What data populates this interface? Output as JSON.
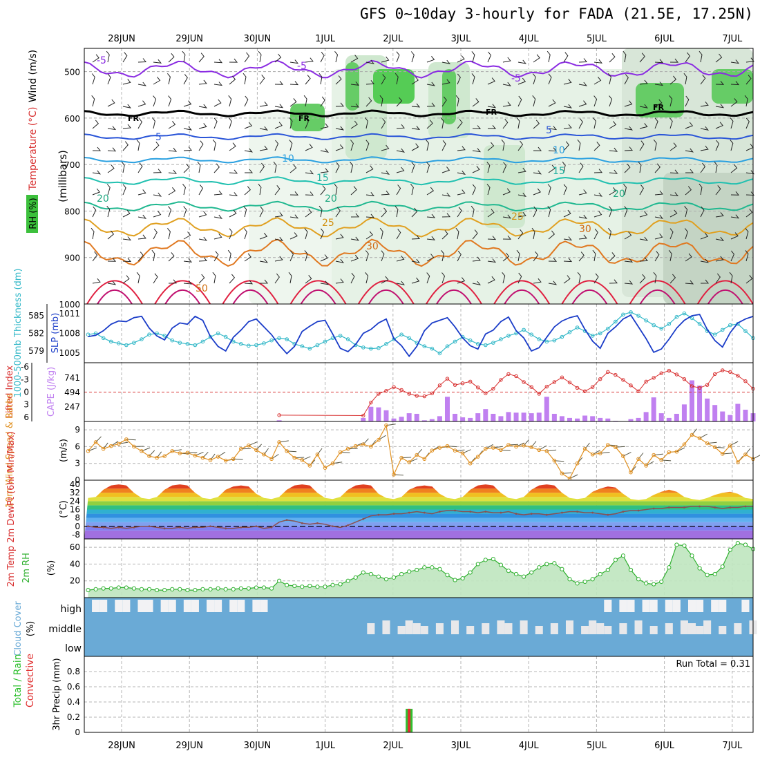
{
  "title": "GFS 0~10day 3-hourly for FADA (21.5E, 17.25N)",
  "colors": {
    "rh_green": "#3cc03c",
    "temp_purple": "#8a2be2",
    "freezing": "#000000",
    "slp": "#1a3cc8",
    "thickness": "#33b8c8",
    "lifted_index": "#d83030",
    "cape": "#c080f0",
    "wind10": "#e09020",
    "dewpt": "#8a5050",
    "rh2m": "#30b030",
    "cloud": "#6aaad6",
    "precip_total": "#30c030",
    "precip_conv": "#e03030"
  },
  "x_labels": [
    "28JUN",
    "29JUN",
    "30JUN",
    "1JUL",
    "2JUL",
    "3JUL",
    "4JUL",
    "5JUL",
    "6JUL",
    "7JUL"
  ],
  "panels": {
    "upper_air": {
      "ylabel_rh": "RH (%)",
      "ylabel_temp": "Temperature (°C)",
      "ylabel_wind": "Wind (m/s)",
      "ylabel_units": "(millibars)",
      "ylim": [
        1000,
        450
      ],
      "yticks": [
        "500",
        "600",
        "700",
        "800",
        "900",
        "1000"
      ],
      "contour_labels": [
        "-5",
        "-5",
        "-5",
        "FR",
        "FR",
        "FR",
        "FR",
        "5",
        "5",
        "10",
        "10",
        "15",
        "15",
        "20",
        "20",
        "20",
        "25",
        "25",
        "30",
        "30",
        "50"
      ]
    },
    "slp_thickness": {
      "ylabel_thk": "1000-500mb Thickness (dm)",
      "ylabel_slp": "SLP (mb)",
      "thk_ticks": [
        "585",
        "582",
        "579"
      ],
      "slp_ticks": [
        "1011",
        "1008",
        "1005"
      ]
    },
    "li_cape": {
      "ylabel_li": "Lifted Index",
      "ylabel_cape": "CAPE (J/kg)",
      "li_ticks": [
        "-6",
        "-3",
        "0",
        "3",
        "6"
      ],
      "cape_ticks": [
        "741",
        "494",
        "247"
      ]
    },
    "wind10": {
      "ylabel": "10m Wind Speed & Barbs",
      "yunits": "(m/s)",
      "yticks": [
        "9",
        "6",
        "3",
        "0"
      ]
    },
    "temp2m": {
      "ylabel": "2m Temp 2m DewPt (6hr Min/Max)",
      "yunits": "(°C)",
      "yticks": [
        "40",
        "32",
        "24",
        "16",
        "8",
        "0",
        "-8"
      ]
    },
    "rh2m": {
      "ylabel": "2m RH",
      "yunits": "(%)",
      "yticks": [
        "60",
        "40",
        "20"
      ]
    },
    "cloud": {
      "ylabel": "Cloud Cover",
      "yunits": "(%)",
      "levels": [
        "high",
        "middle",
        "low"
      ]
    },
    "precip": {
      "ylabel": "3hr Precip (mm)",
      "legend_total": "Total / Rain",
      "legend_conv": "Convective",
      "yticks": [
        "0.8",
        "0.6",
        "0.4",
        "0.2",
        "0"
      ],
      "run_total": "Run Total = 0.31"
    }
  },
  "chart_data": {
    "type": "line",
    "x_start": "27JUN 12Z",
    "x_step_hours": 3,
    "series": [
      {
        "name": "SLP (mb)",
        "unit": "mb",
        "values": [
          1007.5,
          1007.7,
          1008.4,
          1009.4,
          1009.9,
          1009.8,
          1010.4,
          1010.6,
          1008.8,
          1007.6,
          1007.0,
          1008.8,
          1009.6,
          1009.4,
          1010.6,
          1010.0,
          1007.5,
          1006.0,
          1005.3,
          1007.4,
          1008.5,
          1009.8,
          1010.2,
          1009.0,
          1007.8,
          1006.2,
          1004.9,
          1006.0,
          1008.3,
          1009.1,
          1009.8,
          1010.0,
          1007.9,
          1005.7,
          1005.2,
          1006.3,
          1008.0,
          1008.6,
          1009.6,
          1010.2,
          1007.2,
          1006.1,
          1004.5,
          1006.0,
          1008.4,
          1009.6,
          1010.0,
          1010.4,
          1009.0,
          1007.3,
          1006.1,
          1005.6,
          1007.9,
          1008.5,
          1009.8,
          1010.5,
          1008.4,
          1007.3,
          1005.3,
          1005.8,
          1007.4,
          1009.0,
          1009.9,
          1010.4,
          1010.7,
          1008.6,
          1006.8,
          1005.7,
          1008.0,
          1009.0,
          1010.2,
          1010.8,
          1009.0,
          1007.2,
          1005.1,
          1005.6,
          1007.1,
          1008.8,
          1010.0,
          1010.7,
          1010.9,
          1008.6,
          1006.9,
          1005.9,
          1008.1,
          1009.6,
          1010.2,
          1010.6
        ]
      },
      {
        "name": "1000-500mb Thickness (dm)",
        "unit": "dm",
        "values": [
          581.8,
          582.0,
          581.2,
          580.6,
          580.3,
          580.0,
          580.4,
          581.0,
          581.8,
          582.0,
          581.6,
          580.8,
          580.4,
          580.2,
          580.0,
          580.6,
          581.4,
          582.0,
          581.4,
          580.6,
          580.2,
          579.9,
          580.0,
          580.3,
          580.8,
          581.2,
          581.0,
          580.2,
          579.8,
          579.4,
          580.0,
          580.6,
          581.2,
          581.6,
          581.0,
          580.0,
          579.6,
          579.4,
          579.5,
          580.2,
          581.0,
          581.8,
          581.2,
          580.4,
          579.8,
          579.4,
          578.6,
          579.8,
          580.6,
          581.4,
          580.8,
          580.2,
          580.0,
          580.4,
          581.0,
          581.6,
          582.0,
          582.6,
          581.8,
          581.0,
          580.6,
          580.8,
          581.4,
          582.2,
          583.0,
          582.4,
          581.6,
          582.0,
          582.8,
          584.0,
          585.2,
          585.6,
          585.0,
          584.2,
          583.4,
          582.8,
          583.6,
          584.8,
          585.4,
          584.6,
          583.6,
          582.4,
          581.8,
          582.6,
          583.4,
          583.6,
          582.4,
          581.2
        ]
      },
      {
        "name": "Lifted Index",
        "unit": "",
        "values": [
          null,
          null,
          null,
          null,
          null,
          null,
          null,
          null,
          null,
          null,
          null,
          null,
          null,
          null,
          null,
          null,
          null,
          null,
          null,
          null,
          null,
          null,
          null,
          null,
          null,
          5.5,
          null,
          null,
          null,
          null,
          null,
          null,
          null,
          null,
          null,
          null,
          5.6,
          2.5,
          0.4,
          -0.3,
          -1.2,
          -0.5,
          0.4,
          0.9,
          1.0,
          0.3,
          -1.6,
          -3.2,
          -1.7,
          -2.1,
          -2.5,
          -1.1,
          0.3,
          -0.8,
          -2.9,
          -4.3,
          -3.8,
          -2.4,
          -1.2,
          0.4,
          -1.3,
          -2.4,
          -3.5,
          -2.3,
          -1.0,
          -0.2,
          -1.2,
          -3.1,
          -4.8,
          -4.1,
          -2.9,
          -1.6,
          -0.2,
          -2.5,
          -3.4,
          -4.5,
          -5.1,
          -4.2,
          -3.1,
          -1.4,
          -1.0,
          -1.7,
          -4.3,
          -5.2,
          -4.8,
          -3.9,
          -2.6,
          -0.8
        ]
      },
      {
        "name": "CAPE (J/kg)",
        "unit": "J/kg",
        "values": [
          0,
          0,
          0,
          0,
          0,
          0,
          0,
          0,
          0,
          0,
          0,
          0,
          0,
          0,
          0,
          0,
          0,
          0,
          0,
          0,
          0,
          0,
          0,
          0,
          0,
          20,
          0,
          0,
          0,
          0,
          0,
          0,
          0,
          0,
          0,
          0,
          60,
          250,
          240,
          190,
          50,
          80,
          140,
          130,
          20,
          40,
          90,
          420,
          130,
          70,
          60,
          140,
          210,
          130,
          90,
          160,
          150,
          150,
          140,
          150,
          420,
          130,
          90,
          60,
          50,
          100,
          90,
          60,
          50,
          10,
          0,
          40,
          60,
          160,
          410,
          140,
          60,
          130,
          290,
          700,
          610,
          390,
          280,
          170,
          110,
          300,
          200,
          140
        ]
      },
      {
        "name": "10m Wind Speed (m/s)",
        "unit": "m/s",
        "values": [
          5.2,
          6.8,
          5.6,
          6.1,
          6.5,
          7.3,
          6.0,
          5.2,
          4.3,
          4.0,
          4.3,
          5.2,
          4.8,
          4.9,
          4.4,
          4.0,
          3.6,
          4.2,
          3.5,
          3.8,
          5.6,
          6.2,
          5.4,
          4.6,
          3.8,
          6.8,
          5.2,
          4.0,
          3.6,
          2.6,
          4.6,
          2.2,
          3.0,
          5.0,
          5.6,
          6.1,
          6.4,
          6.0,
          7.2,
          9.8,
          1.0,
          4.0,
          3.2,
          4.5,
          3.8,
          5.3,
          5.8,
          6.1,
          5.3,
          4.8,
          3.0,
          4.2,
          5.6,
          5.8,
          5.4,
          6.3,
          6.0,
          6.2,
          5.9,
          5.4,
          5.2,
          3.5,
          1.2,
          0.3,
          3.0,
          5.6,
          4.6,
          4.8,
          6.3,
          5.9,
          4.3,
          1.4,
          3.8,
          2.6,
          4.5,
          3.6,
          5.0,
          5.1,
          6.4,
          8.1,
          7.5,
          6.6,
          5.9,
          4.7,
          6.2,
          3.2,
          4.6,
          3.8
        ]
      },
      {
        "name": "2m Temp max (°C)",
        "unit": "°C",
        "values": [
          27,
          28,
          35,
          39,
          40,
          39,
          32,
          27,
          26,
          28,
          35,
          39,
          40,
          39,
          32,
          27,
          26,
          28,
          35,
          38,
          39,
          38,
          31,
          27,
          26,
          28,
          35,
          39,
          40,
          39,
          32,
          27,
          26,
          28,
          35,
          39,
          40,
          39,
          31,
          27,
          26,
          28,
          35,
          38,
          39,
          38,
          31,
          27,
          26,
          28,
          35,
          39,
          40,
          39,
          32,
          27,
          26,
          28,
          35,
          39,
          40,
          39,
          32,
          27,
          26,
          27,
          33,
          36,
          38,
          37,
          31,
          26,
          25,
          26,
          30,
          33,
          35,
          33,
          28,
          26,
          25,
          27,
          30,
          32,
          33,
          31,
          27,
          26
        ]
      },
      {
        "name": "2m DewPt (°C)",
        "unit": "°C",
        "values": [
          0,
          -1,
          -1,
          -2,
          -1,
          -2,
          -1,
          0,
          0,
          -1,
          -2,
          -2,
          -1,
          -2,
          -1,
          -1,
          0,
          -1,
          -2,
          -2,
          -1,
          -1,
          0,
          -2,
          -1,
          4,
          6,
          5,
          3,
          2,
          3,
          2,
          0,
          -1,
          1,
          4,
          7,
          10,
          11,
          11,
          12,
          12,
          13,
          14,
          13,
          12,
          14,
          15,
          15,
          14,
          14,
          13,
          14,
          13,
          13,
          14,
          12,
          11,
          12,
          12,
          11,
          12,
          13,
          14,
          14,
          13,
          13,
          12,
          11,
          12,
          14,
          15,
          15,
          16,
          17,
          17,
          18,
          18,
          18,
          19,
          19,
          19,
          18,
          17,
          18,
          18,
          19,
          19
        ]
      },
      {
        "name": "2m RH (%)",
        "unit": "%",
        "values": [
          9,
          10,
          11,
          11,
          12,
          12,
          11,
          10,
          10,
          9,
          9,
          10,
          10,
          9,
          9,
          10,
          10,
          11,
          10,
          10,
          11,
          11,
          12,
          12,
          11,
          20,
          15,
          14,
          13,
          14,
          13,
          13,
          15,
          16,
          20,
          24,
          30,
          28,
          25,
          22,
          24,
          28,
          31,
          33,
          36,
          36,
          34,
          27,
          21,
          23,
          30,
          40,
          45,
          46,
          39,
          32,
          28,
          25,
          30,
          36,
          40,
          41,
          34,
          22,
          17,
          19,
          22,
          28,
          33,
          45,
          50,
          33,
          22,
          17,
          16,
          19,
          36,
          63,
          62,
          50,
          35,
          27,
          28,
          37,
          57,
          65,
          63,
          58
        ]
      },
      {
        "name": "3hr Precip Total (mm)",
        "unit": "mm",
        "event_x": "2JUL 18Z",
        "value": 0.31
      },
      {
        "name": "3hr Precip Convective (mm)",
        "unit": "mm",
        "event_x": "2JUL 18Z",
        "value": 0.31
      }
    ]
  }
}
